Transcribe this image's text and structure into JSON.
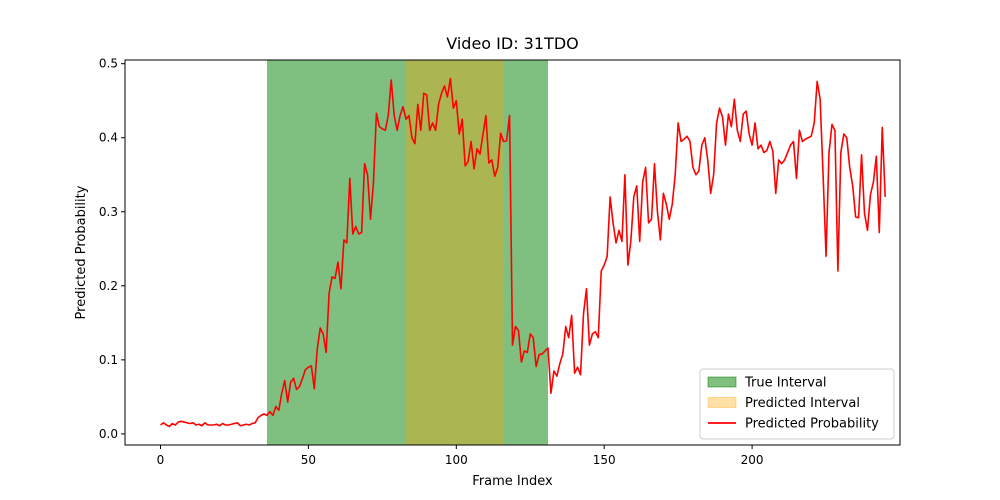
{
  "chart_data": {
    "type": "line",
    "title": "Video ID: 31TDO",
    "xlabel": "Frame Index",
    "ylabel": "Predicted Probability",
    "xlim": [
      -12,
      250
    ],
    "ylim": [
      -0.015,
      0.505
    ],
    "xticks": [
      0,
      50,
      100,
      150,
      200
    ],
    "yticks": [
      0.0,
      0.1,
      0.2,
      0.3,
      0.4,
      0.5
    ],
    "ytick_labels": [
      "0.0",
      "0.1",
      "0.2",
      "0.3",
      "0.4",
      "0.5"
    ],
    "grid": false,
    "legend_position": "lower-right",
    "intervals": [
      {
        "name": "True Interval",
        "start": 36,
        "end": 131,
        "color": "#008000",
        "opacity": 0.5
      },
      {
        "name": "Predicted Interval",
        "start": 83,
        "end": 116,
        "color": "#ffa500",
        "opacity": 0.35
      }
    ],
    "series": [
      {
        "name": "Predicted Probability",
        "color": "#ff0000",
        "x_start": 0,
        "values": [
          0.012,
          0.015,
          0.012,
          0.01,
          0.014,
          0.012,
          0.016,
          0.017,
          0.016,
          0.015,
          0.014,
          0.015,
          0.012,
          0.013,
          0.011,
          0.015,
          0.012,
          0.012,
          0.012,
          0.013,
          0.011,
          0.014,
          0.012,
          0.012,
          0.013,
          0.014,
          0.015,
          0.011,
          0.012,
          0.013,
          0.012,
          0.014,
          0.015,
          0.022,
          0.025,
          0.027,
          0.025,
          0.03,
          0.025,
          0.037,
          0.032,
          0.055,
          0.072,
          0.043,
          0.07,
          0.075,
          0.06,
          0.064,
          0.075,
          0.087,
          0.09,
          0.092,
          0.061,
          0.115,
          0.143,
          0.135,
          0.11,
          0.19,
          0.212,
          0.21,
          0.232,
          0.196,
          0.262,
          0.258,
          0.345,
          0.27,
          0.28,
          0.27,
          0.272,
          0.365,
          0.35,
          0.29,
          0.34,
          0.433,
          0.415,
          0.412,
          0.41,
          0.43,
          0.478,
          0.43,
          0.41,
          0.43,
          0.442,
          0.425,
          0.43,
          0.4,
          0.392,
          0.445,
          0.41,
          0.46,
          0.458,
          0.41,
          0.42,
          0.41,
          0.445,
          0.46,
          0.47,
          0.455,
          0.48,
          0.44,
          0.45,
          0.405,
          0.425,
          0.362,
          0.368,
          0.395,
          0.358,
          0.385,
          0.378,
          0.404,
          0.43,
          0.366,
          0.37,
          0.348,
          0.36,
          0.406,
          0.395,
          0.396,
          0.43,
          0.12,
          0.145,
          0.14,
          0.097,
          0.112,
          0.11,
          0.135,
          0.13,
          0.091,
          0.107,
          0.108,
          0.112,
          0.116,
          0.055,
          0.085,
          0.078,
          0.095,
          0.108,
          0.145,
          0.13,
          0.16,
          0.082,
          0.09,
          0.08,
          0.162,
          0.196,
          0.12,
          0.135,
          0.138,
          0.13,
          0.22,
          0.228,
          0.24,
          0.32,
          0.285,
          0.258,
          0.275,
          0.26,
          0.35,
          0.228,
          0.26,
          0.32,
          0.335,
          0.26,
          0.34,
          0.36,
          0.285,
          0.29,
          0.365,
          0.3,
          0.262,
          0.325,
          0.31,
          0.29,
          0.31,
          0.35,
          0.42,
          0.395,
          0.398,
          0.402,
          0.395,
          0.36,
          0.35,
          0.355,
          0.39,
          0.4,
          0.37,
          0.325,
          0.35,
          0.42,
          0.44,
          0.428,
          0.39,
          0.432,
          0.415,
          0.452,
          0.41,
          0.395,
          0.432,
          0.436,
          0.405,
          0.39,
          0.42,
          0.385,
          0.39,
          0.38,
          0.383,
          0.395,
          0.382,
          0.325,
          0.37,
          0.365,
          0.37,
          0.38,
          0.39,
          0.395,
          0.345,
          0.41,
          0.395,
          0.398,
          0.4,
          0.402,
          0.42,
          0.476,
          0.452,
          0.35,
          0.24,
          0.38,
          0.418,
          0.41,
          0.22,
          0.38,
          0.405,
          0.4,
          0.36,
          0.335,
          0.293,
          0.292,
          0.377,
          0.298,
          0.275,
          0.323,
          0.34,
          0.375,
          0.272,
          0.414,
          0.32
        ]
      }
    ]
  }
}
